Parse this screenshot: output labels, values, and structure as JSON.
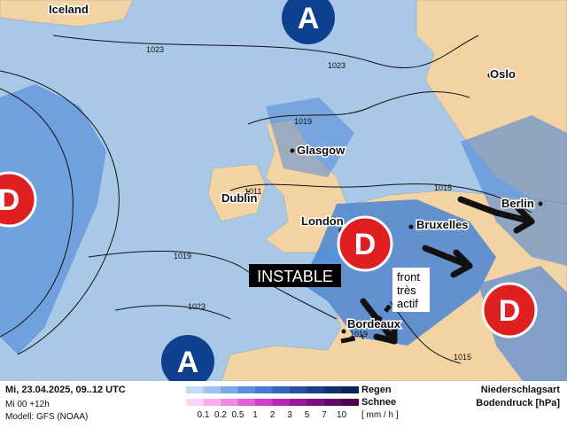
{
  "map": {
    "cities": [
      "Iceland",
      "Oslo",
      "Glasgow",
      "Dublin",
      "Berlin",
      "London",
      "Bruxelles",
      "Bordeaux"
    ],
    "pressure_centers": [
      "A",
      "D",
      "D",
      "D",
      "A"
    ],
    "isobar_labels": [
      "1023",
      "1023",
      "1019",
      "1011",
      "1015",
      "1019",
      "1023",
      "1019",
      "1015"
    ],
    "annotations": [
      "INSTABLE",
      "front",
      "très",
      "actif"
    ]
  },
  "legend": {
    "date": "Mi, 23.04.2025, 09..12 UTC",
    "run": "Mi 00 +12h",
    "model": "Modell: GFS (NOAA)",
    "rain": "Regen",
    "snow": "Schnee",
    "scale": [
      "0.1",
      "0.2",
      "0.5",
      "1",
      "2",
      "3",
      "5",
      "7",
      "10"
    ],
    "unit": "[ mm / h ]",
    "type_title": "Niederschlagsart",
    "pressure_title": "Bodendruck [hPa]"
  }
}
